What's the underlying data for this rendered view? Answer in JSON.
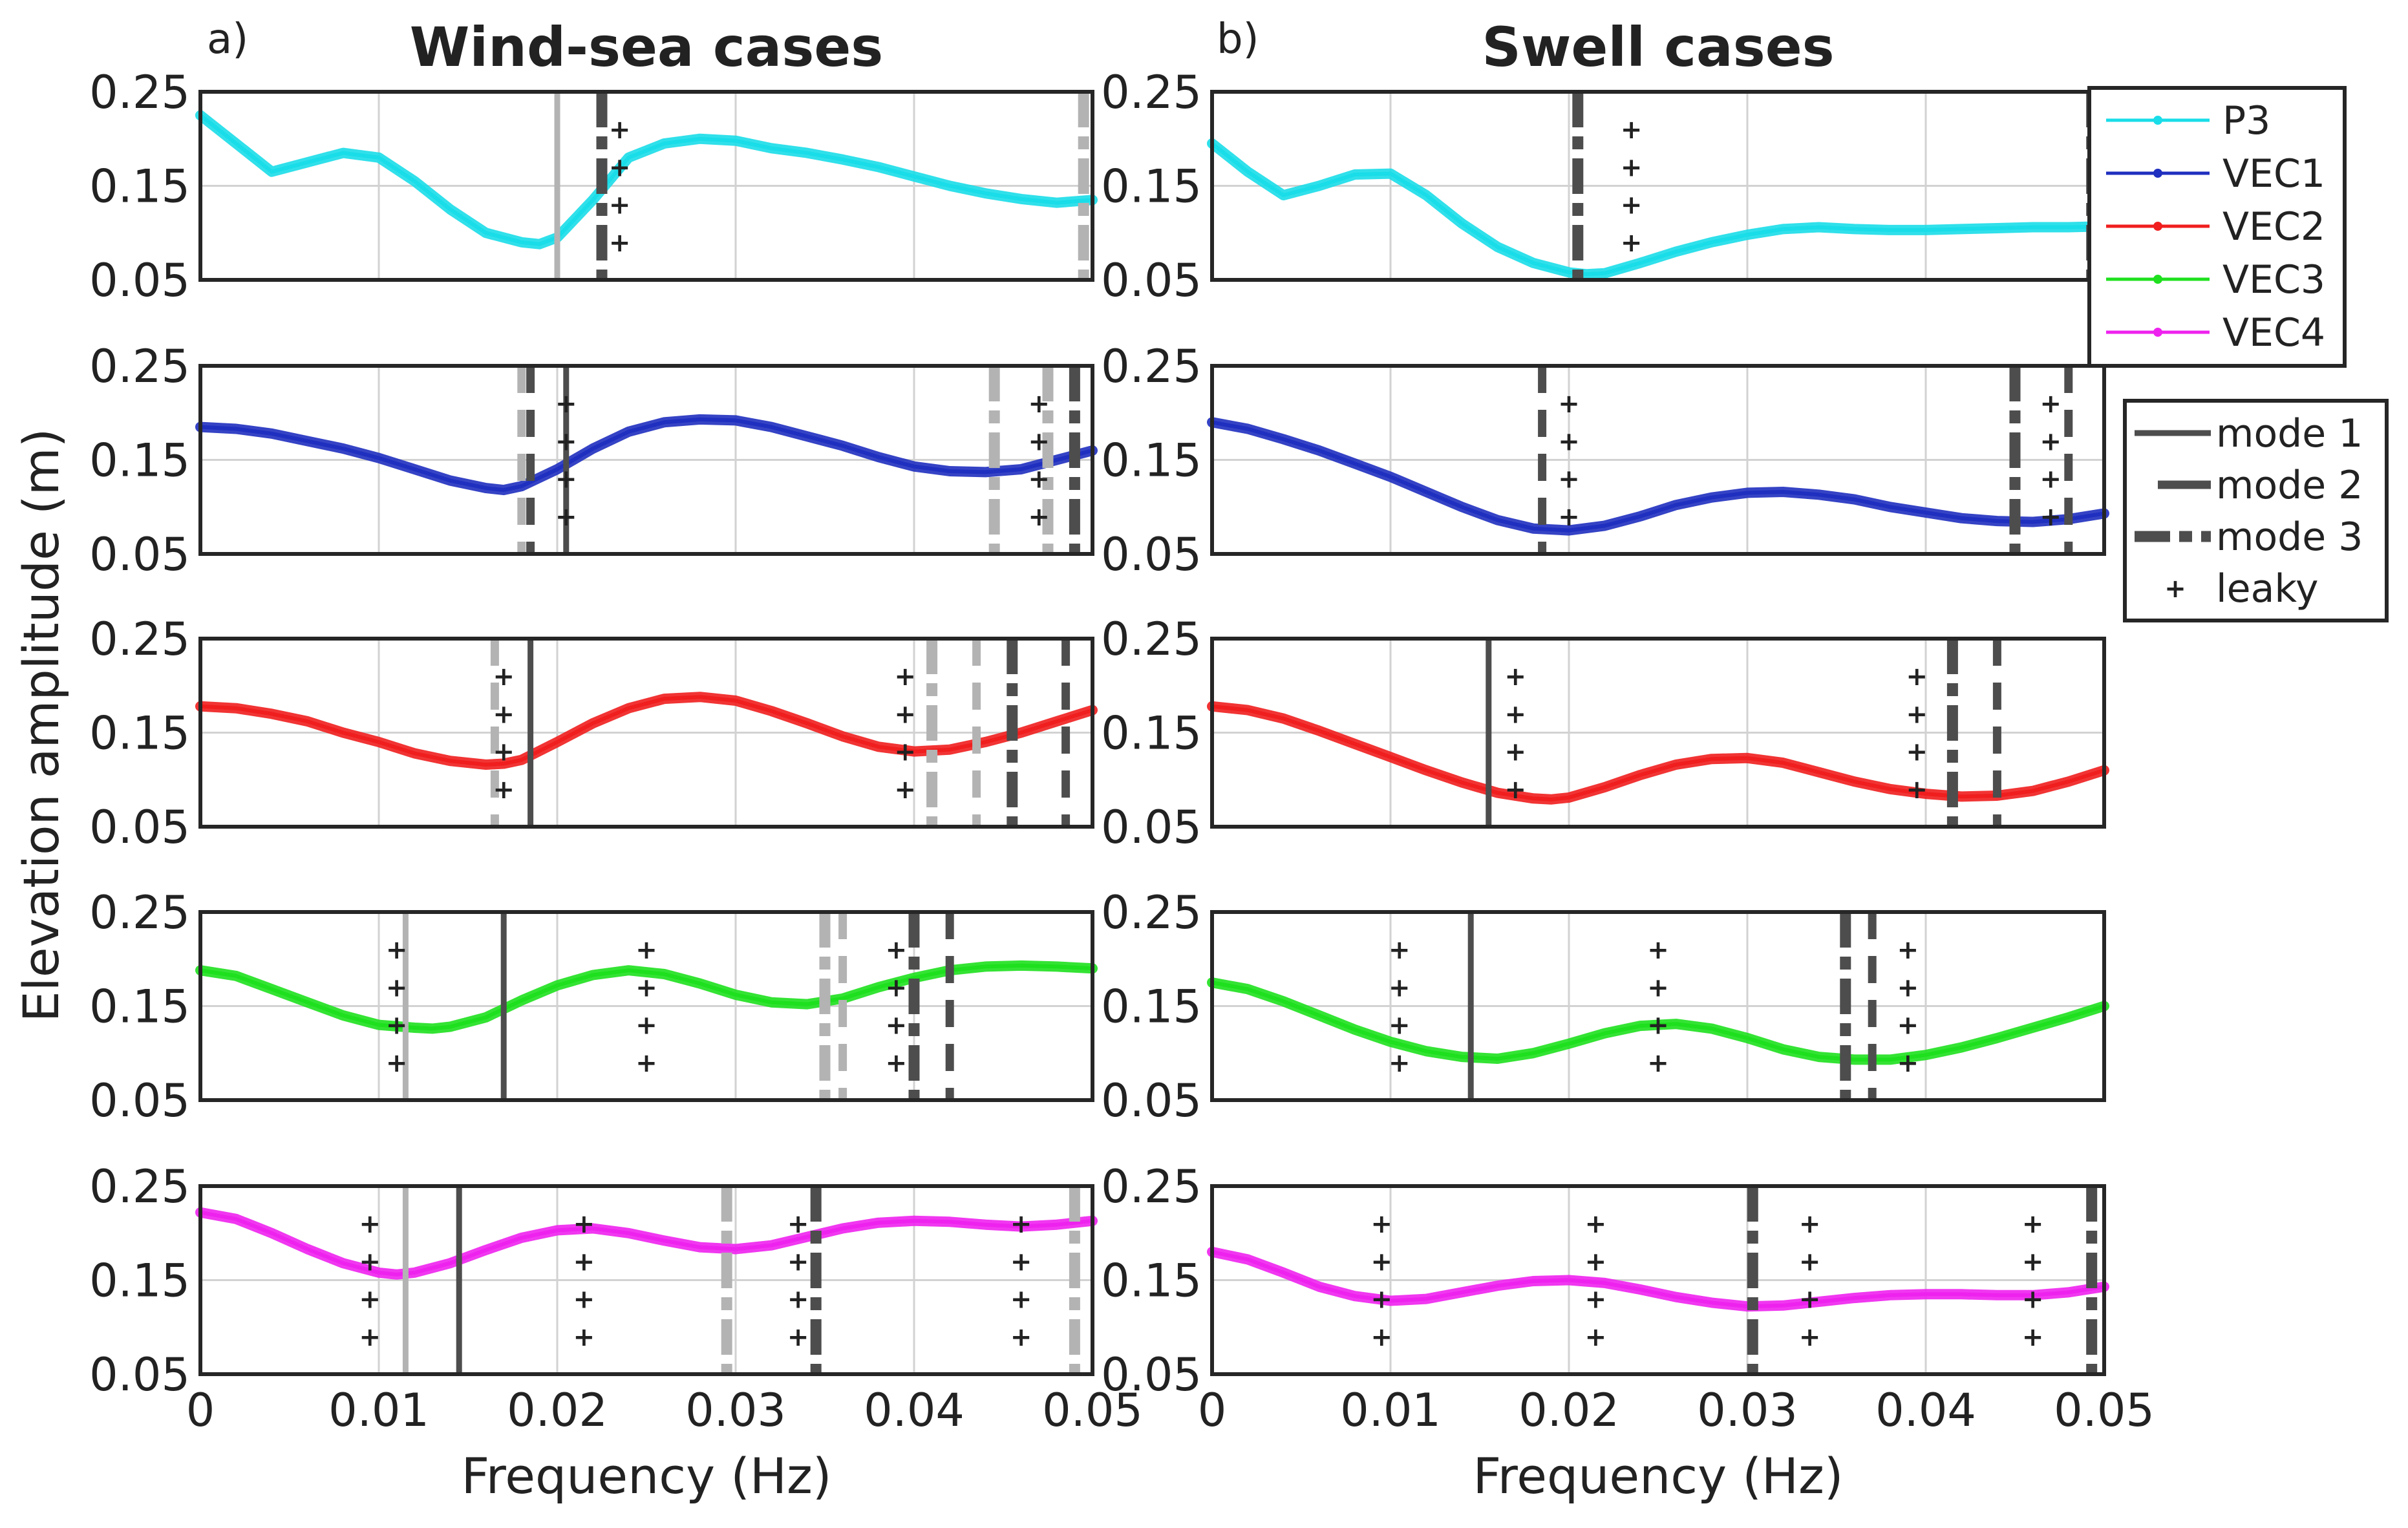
{
  "figure": {
    "left_letter": "a)",
    "left_title": "Wind-sea cases",
    "right_letter": "b)",
    "right_title": "Swell cases",
    "ylabel": "Elevation amplitude (m)",
    "xlabel_left": "Frequency (Hz)",
    "xlabel_right": "Frequency (Hz)"
  },
  "colors": {
    "P3": "#19dde8",
    "VEC1": "#1f2fbf",
    "VEC2": "#f01e1e",
    "VEC3": "#1ee01e",
    "VEC4": "#ee22ee",
    "mode_dark": "#4d4d4d",
    "mode_light": "#b3b3b3",
    "leaky": "#111111"
  },
  "legend_series": [
    {
      "name": "P3",
      "label": "P3"
    },
    {
      "name": "VEC1",
      "label": "VEC1"
    },
    {
      "name": "VEC2",
      "label": "VEC2"
    },
    {
      "name": "VEC3",
      "label": "VEC3"
    },
    {
      "name": "VEC4",
      "label": "VEC4"
    }
  ],
  "legend_modes": [
    {
      "key": "mode1",
      "label": "mode 1"
    },
    {
      "key": "mode2",
      "label": "mode 2"
    },
    {
      "key": "mode3",
      "label": "mode 3"
    },
    {
      "key": "leaky",
      "label": "leaky"
    }
  ],
  "chart_data": [
    {
      "type": "line",
      "title": "Wind-sea cases",
      "series": "P3",
      "xlim": [
        0,
        0.05
      ],
      "ylim": [
        0.05,
        0.25
      ],
      "xticks": [
        "0",
        "0.01",
        "0.02",
        "0.03",
        "0.04",
        "0.05"
      ],
      "yticks": [
        "0.05",
        "0.15",
        "0.25"
      ],
      "xlabel": "Frequency (Hz)",
      "ylabel": "Elevation amplitude (m)",
      "x": [
        0,
        0.002,
        0.004,
        0.006,
        0.008,
        0.01,
        0.012,
        0.014,
        0.016,
        0.018,
        0.019,
        0.02,
        0.022,
        0.024,
        0.026,
        0.028,
        0.03,
        0.032,
        0.034,
        0.036,
        0.038,
        0.04,
        0.042,
        0.044,
        0.046,
        0.048,
        0.05
      ],
      "y": [
        0.225,
        0.195,
        0.165,
        0.175,
        0.185,
        0.18,
        0.155,
        0.125,
        0.1,
        0.09,
        0.088,
        0.095,
        0.135,
        0.18,
        0.195,
        0.2,
        0.198,
        0.19,
        0.185,
        0.178,
        0.17,
        0.16,
        0.15,
        0.142,
        0.136,
        0.132,
        0.135
      ],
      "modes": [
        {
          "type": "mode1",
          "tone": "light",
          "x": 0.02
        },
        {
          "type": "mode3",
          "tone": "dark",
          "x": 0.0225
        },
        {
          "type": "mode3",
          "tone": "light",
          "x": 0.0495
        }
      ],
      "leaky": [
        0.0235
      ]
    },
    {
      "type": "line",
      "title": "Swell cases",
      "series": "P3",
      "xlim": [
        0,
        0.05
      ],
      "ylim": [
        0.05,
        0.25
      ],
      "xticks": [
        "0",
        "0.01",
        "0.02",
        "0.03",
        "0.04",
        "0.05"
      ],
      "yticks": [
        "0.05",
        "0.15",
        "0.25"
      ],
      "xlabel": "Frequency (Hz)",
      "ylabel": "Elevation amplitude (m)",
      "x": [
        0,
        0.002,
        0.004,
        0.006,
        0.008,
        0.01,
        0.012,
        0.014,
        0.016,
        0.018,
        0.02,
        0.021,
        0.022,
        0.024,
        0.026,
        0.028,
        0.03,
        0.032,
        0.034,
        0.036,
        0.038,
        0.04,
        0.042,
        0.044,
        0.046,
        0.048,
        0.05
      ],
      "y": [
        0.195,
        0.165,
        0.14,
        0.15,
        0.162,
        0.163,
        0.14,
        0.11,
        0.085,
        0.068,
        0.058,
        0.056,
        0.057,
        0.068,
        0.08,
        0.09,
        0.098,
        0.104,
        0.106,
        0.104,
        0.103,
        0.103,
        0.104,
        0.105,
        0.106,
        0.106,
        0.107
      ],
      "modes": [
        {
          "type": "mode3",
          "tone": "dark",
          "x": 0.0205
        },
        {
          "type": "mode3",
          "tone": "dark",
          "x": 0.0493
        }
      ],
      "leaky": [
        0.0235
      ]
    },
    {
      "type": "line",
      "title": "Wind-sea cases",
      "series": "VEC1",
      "xlim": [
        0,
        0.05
      ],
      "ylim": [
        0.05,
        0.25
      ],
      "xticks": [
        "0",
        "0.01",
        "0.02",
        "0.03",
        "0.04",
        "0.05"
      ],
      "yticks": [
        "0.05",
        "0.15",
        "0.25"
      ],
      "xlabel": "Frequency (Hz)",
      "ylabel": "Elevation amplitude (m)",
      "x": [
        0,
        0.002,
        0.004,
        0.006,
        0.008,
        0.01,
        0.012,
        0.014,
        0.016,
        0.017,
        0.018,
        0.02,
        0.022,
        0.024,
        0.026,
        0.028,
        0.03,
        0.032,
        0.034,
        0.036,
        0.038,
        0.04,
        0.042,
        0.044,
        0.046,
        0.048,
        0.05
      ],
      "y": [
        0.185,
        0.183,
        0.178,
        0.17,
        0.162,
        0.152,
        0.14,
        0.128,
        0.12,
        0.118,
        0.122,
        0.14,
        0.162,
        0.18,
        0.19,
        0.193,
        0.192,
        0.185,
        0.175,
        0.165,
        0.153,
        0.143,
        0.138,
        0.137,
        0.14,
        0.15,
        0.16
      ],
      "modes": [
        {
          "type": "mode2",
          "tone": "light",
          "x": 0.018
        },
        {
          "type": "mode2",
          "tone": "dark",
          "x": 0.0185
        },
        {
          "type": "mode1",
          "tone": "dark",
          "x": 0.0205
        },
        {
          "type": "mode3",
          "tone": "light",
          "x": 0.0445
        },
        {
          "type": "mode3",
          "tone": "light",
          "x": 0.0475
        },
        {
          "type": "mode3",
          "tone": "dark",
          "x": 0.049
        }
      ],
      "leaky": [
        0.0205,
        0.047
      ]
    },
    {
      "type": "line",
      "title": "Swell cases",
      "series": "VEC1",
      "xlim": [
        0,
        0.05
      ],
      "ylim": [
        0.05,
        0.25
      ],
      "xticks": [
        "0",
        "0.01",
        "0.02",
        "0.03",
        "0.04",
        "0.05"
      ],
      "yticks": [
        "0.05",
        "0.15",
        "0.25"
      ],
      "xlabel": "Frequency (Hz)",
      "ylabel": "Elevation amplitude (m)",
      "x": [
        0,
        0.002,
        0.004,
        0.006,
        0.008,
        0.01,
        0.012,
        0.014,
        0.016,
        0.018,
        0.02,
        0.022,
        0.024,
        0.026,
        0.028,
        0.03,
        0.032,
        0.034,
        0.036,
        0.038,
        0.04,
        0.042,
        0.044,
        0.046,
        0.048,
        0.05
      ],
      "y": [
        0.19,
        0.183,
        0.172,
        0.16,
        0.146,
        0.132,
        0.116,
        0.1,
        0.086,
        0.077,
        0.075,
        0.08,
        0.09,
        0.102,
        0.11,
        0.115,
        0.116,
        0.113,
        0.108,
        0.1,
        0.094,
        0.088,
        0.085,
        0.084,
        0.087,
        0.093
      ],
      "modes": [
        {
          "type": "mode2",
          "tone": "dark",
          "x": 0.0185
        },
        {
          "type": "mode3",
          "tone": "dark",
          "x": 0.045
        },
        {
          "type": "mode2",
          "tone": "dark",
          "x": 0.048
        }
      ],
      "leaky": [
        0.02,
        0.047
      ]
    },
    {
      "type": "line",
      "title": "Wind-sea cases",
      "series": "VEC2",
      "xlim": [
        0,
        0.05
      ],
      "ylim": [
        0.05,
        0.25
      ],
      "xticks": [
        "0",
        "0.01",
        "0.02",
        "0.03",
        "0.04",
        "0.05"
      ],
      "yticks": [
        "0.05",
        "0.15",
        "0.25"
      ],
      "xlabel": "Frequency (Hz)",
      "ylabel": "Elevation amplitude (m)",
      "x": [
        0,
        0.002,
        0.004,
        0.006,
        0.008,
        0.01,
        0.012,
        0.014,
        0.016,
        0.017,
        0.018,
        0.02,
        0.022,
        0.024,
        0.026,
        0.028,
        0.03,
        0.032,
        0.034,
        0.036,
        0.038,
        0.04,
        0.042,
        0.044,
        0.046,
        0.048,
        0.05
      ],
      "y": [
        0.178,
        0.176,
        0.17,
        0.162,
        0.15,
        0.14,
        0.128,
        0.12,
        0.116,
        0.117,
        0.121,
        0.14,
        0.16,
        0.176,
        0.186,
        0.188,
        0.184,
        0.173,
        0.16,
        0.146,
        0.135,
        0.13,
        0.132,
        0.14,
        0.15,
        0.162,
        0.174
      ],
      "modes": [
        {
          "type": "mode2",
          "tone": "light",
          "x": 0.0165
        },
        {
          "type": "mode1",
          "tone": "dark",
          "x": 0.0185
        },
        {
          "type": "mode3",
          "tone": "light",
          "x": 0.041
        },
        {
          "type": "mode2",
          "tone": "light",
          "x": 0.0435
        },
        {
          "type": "mode3",
          "tone": "dark",
          "x": 0.0455
        },
        {
          "type": "mode2",
          "tone": "dark",
          "x": 0.0485
        }
      ],
      "leaky": [
        0.017,
        0.0395
      ]
    },
    {
      "type": "line",
      "title": "Swell cases",
      "series": "VEC2",
      "xlim": [
        0,
        0.05
      ],
      "ylim": [
        0.05,
        0.25
      ],
      "xticks": [
        "0",
        "0.01",
        "0.02",
        "0.03",
        "0.04",
        "0.05"
      ],
      "yticks": [
        "0.05",
        "0.15",
        "0.25"
      ],
      "xlabel": "Frequency (Hz)",
      "ylabel": "Elevation amplitude (m)",
      "x": [
        0,
        0.002,
        0.004,
        0.006,
        0.008,
        0.01,
        0.012,
        0.014,
        0.016,
        0.018,
        0.019,
        0.02,
        0.022,
        0.024,
        0.026,
        0.028,
        0.03,
        0.032,
        0.034,
        0.036,
        0.038,
        0.04,
        0.042,
        0.044,
        0.046,
        0.048,
        0.05
      ],
      "y": [
        0.178,
        0.174,
        0.165,
        0.152,
        0.138,
        0.124,
        0.11,
        0.097,
        0.086,
        0.08,
        0.079,
        0.081,
        0.092,
        0.105,
        0.116,
        0.122,
        0.123,
        0.118,
        0.108,
        0.098,
        0.09,
        0.085,
        0.082,
        0.083,
        0.088,
        0.098,
        0.11
      ],
      "modes": [
        {
          "type": "mode1",
          "tone": "dark",
          "x": 0.0155
        },
        {
          "type": "mode3",
          "tone": "dark",
          "x": 0.0415
        },
        {
          "type": "mode2",
          "tone": "dark",
          "x": 0.044
        }
      ],
      "leaky": [
        0.017,
        0.0395
      ]
    },
    {
      "type": "line",
      "title": "Wind-sea cases",
      "series": "VEC3",
      "xlim": [
        0,
        0.05
      ],
      "ylim": [
        0.05,
        0.25
      ],
      "xticks": [
        "0",
        "0.01",
        "0.02",
        "0.03",
        "0.04",
        "0.05"
      ],
      "yticks": [
        "0.05",
        "0.15",
        "0.25"
      ],
      "xlabel": "Frequency (Hz)",
      "ylabel": "Elevation amplitude (m)",
      "x": [
        0,
        0.002,
        0.004,
        0.006,
        0.008,
        0.01,
        0.012,
        0.013,
        0.014,
        0.016,
        0.018,
        0.02,
        0.022,
        0.024,
        0.026,
        0.028,
        0.03,
        0.032,
        0.034,
        0.036,
        0.038,
        0.04,
        0.042,
        0.044,
        0.046,
        0.048,
        0.05
      ],
      "y": [
        0.188,
        0.182,
        0.168,
        0.154,
        0.14,
        0.13,
        0.127,
        0.126,
        0.128,
        0.138,
        0.156,
        0.172,
        0.183,
        0.188,
        0.184,
        0.174,
        0.162,
        0.154,
        0.152,
        0.158,
        0.17,
        0.18,
        0.188,
        0.192,
        0.193,
        0.192,
        0.19
      ],
      "modes": [
        {
          "type": "mode1",
          "tone": "light",
          "x": 0.0115
        },
        {
          "type": "mode1",
          "tone": "dark",
          "x": 0.017
        },
        {
          "type": "mode3",
          "tone": "light",
          "x": 0.035
        },
        {
          "type": "mode2",
          "tone": "light",
          "x": 0.036
        },
        {
          "type": "mode3",
          "tone": "dark",
          "x": 0.04
        },
        {
          "type": "mode2",
          "tone": "dark",
          "x": 0.042
        }
      ],
      "leaky": [
        0.011,
        0.025,
        0.039
      ]
    },
    {
      "type": "line",
      "title": "Swell cases",
      "series": "VEC3",
      "xlim": [
        0,
        0.05
      ],
      "ylim": [
        0.05,
        0.25
      ],
      "xticks": [
        "0",
        "0.01",
        "0.02",
        "0.03",
        "0.04",
        "0.05"
      ],
      "yticks": [
        "0.05",
        "0.15",
        "0.25"
      ],
      "xlabel": "Frequency (Hz)",
      "ylabel": "Elevation amplitude (m)",
      "x": [
        0,
        0.002,
        0.004,
        0.006,
        0.008,
        0.01,
        0.012,
        0.014,
        0.016,
        0.018,
        0.02,
        0.022,
        0.024,
        0.026,
        0.028,
        0.03,
        0.032,
        0.034,
        0.036,
        0.038,
        0.04,
        0.042,
        0.044,
        0.046,
        0.048,
        0.05
      ],
      "y": [
        0.175,
        0.168,
        0.155,
        0.14,
        0.125,
        0.112,
        0.102,
        0.096,
        0.094,
        0.1,
        0.11,
        0.121,
        0.129,
        0.131,
        0.126,
        0.116,
        0.104,
        0.096,
        0.093,
        0.093,
        0.098,
        0.106,
        0.116,
        0.127,
        0.138,
        0.15
      ],
      "modes": [
        {
          "type": "mode1",
          "tone": "dark",
          "x": 0.0145
        },
        {
          "type": "mode3",
          "tone": "dark",
          "x": 0.0355
        },
        {
          "type": "mode2",
          "tone": "dark",
          "x": 0.037
        }
      ],
      "leaky": [
        0.0105,
        0.025,
        0.039
      ]
    },
    {
      "type": "line",
      "title": "Wind-sea cases",
      "series": "VEC4",
      "xlim": [
        0,
        0.05
      ],
      "ylim": [
        0.05,
        0.25
      ],
      "xticks": [
        "0",
        "0.01",
        "0.02",
        "0.03",
        "0.04",
        "0.05"
      ],
      "yticks": [
        "0.05",
        "0.15",
        "0.25"
      ],
      "xlabel": "Frequency (Hz)",
      "ylabel": "Elevation amplitude (m)",
      "x": [
        0,
        0.002,
        0.004,
        0.006,
        0.008,
        0.01,
        0.011,
        0.012,
        0.014,
        0.016,
        0.018,
        0.02,
        0.022,
        0.024,
        0.026,
        0.028,
        0.03,
        0.032,
        0.034,
        0.036,
        0.038,
        0.04,
        0.042,
        0.044,
        0.046,
        0.048,
        0.05
      ],
      "y": [
        0.222,
        0.215,
        0.2,
        0.183,
        0.168,
        0.158,
        0.156,
        0.158,
        0.168,
        0.182,
        0.195,
        0.203,
        0.205,
        0.2,
        0.192,
        0.185,
        0.183,
        0.187,
        0.196,
        0.205,
        0.211,
        0.213,
        0.212,
        0.209,
        0.207,
        0.209,
        0.213
      ],
      "modes": [
        {
          "type": "mode1",
          "tone": "light",
          "x": 0.0115
        },
        {
          "type": "mode1",
          "tone": "dark",
          "x": 0.0145
        },
        {
          "type": "mode3",
          "tone": "light",
          "x": 0.0295
        },
        {
          "type": "mode3",
          "tone": "dark",
          "x": 0.0345
        },
        {
          "type": "mode3",
          "tone": "light",
          "x": 0.049
        }
      ],
      "leaky": [
        0.0095,
        0.0215,
        0.0335,
        0.046
      ]
    },
    {
      "type": "line",
      "title": "Swell cases",
      "series": "VEC4",
      "xlim": [
        0,
        0.05
      ],
      "ylim": [
        0.05,
        0.25
      ],
      "xticks": [
        "0",
        "0.01",
        "0.02",
        "0.03",
        "0.04",
        "0.05"
      ],
      "yticks": [
        "0.05",
        "0.15",
        "0.25"
      ],
      "xlabel": "Frequency (Hz)",
      "ylabel": "Elevation amplitude (m)",
      "x": [
        0,
        0.002,
        0.004,
        0.006,
        0.008,
        0.01,
        0.012,
        0.014,
        0.016,
        0.018,
        0.02,
        0.022,
        0.024,
        0.026,
        0.028,
        0.03,
        0.032,
        0.034,
        0.036,
        0.038,
        0.04,
        0.042,
        0.044,
        0.046,
        0.048,
        0.05
      ],
      "y": [
        0.18,
        0.172,
        0.158,
        0.143,
        0.133,
        0.128,
        0.13,
        0.137,
        0.144,
        0.149,
        0.15,
        0.147,
        0.14,
        0.132,
        0.126,
        0.122,
        0.123,
        0.127,
        0.131,
        0.134,
        0.135,
        0.135,
        0.134,
        0.134,
        0.137,
        0.143
      ],
      "modes": [
        {
          "type": "mode3",
          "tone": "dark",
          "x": 0.0303
        },
        {
          "type": "mode3",
          "tone": "dark",
          "x": 0.0493
        }
      ],
      "leaky": [
        0.0095,
        0.0215,
        0.0335,
        0.046
      ]
    }
  ]
}
